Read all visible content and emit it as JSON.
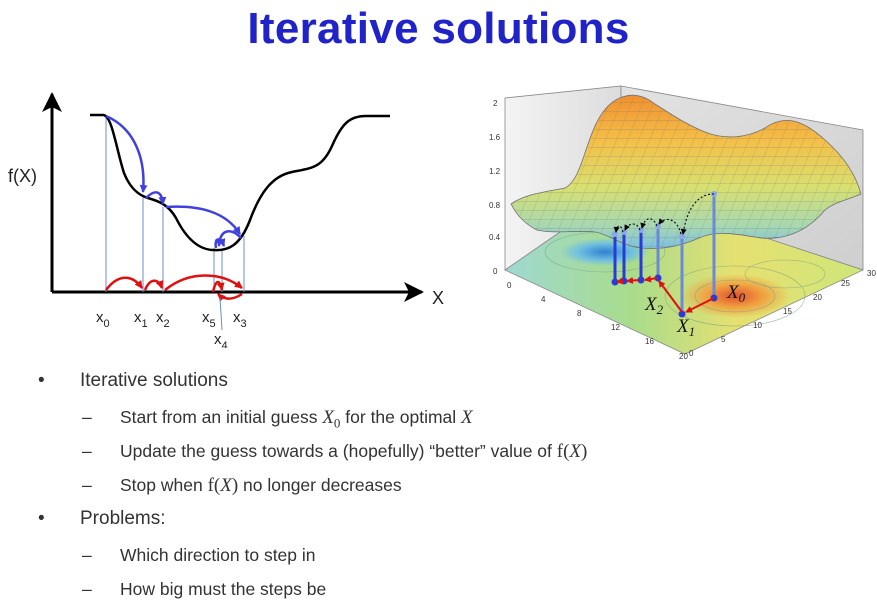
{
  "title": "Iterative solutions",
  "left_plot": {
    "y_label": "f(X)",
    "x_label": "X",
    "ticks": [
      {
        "base": "x",
        "sub": "0"
      },
      {
        "base": "x",
        "sub": "1"
      },
      {
        "base": "x",
        "sub": "2"
      },
      {
        "base": "x",
        "sub": "5"
      },
      {
        "base": "x",
        "sub": "3"
      },
      {
        "base": "x",
        "sub": "4"
      }
    ],
    "colors": {
      "curve": "#000000",
      "step": "#4040e0",
      "jump": "#e01010",
      "drop": "#6a8fc8"
    }
  },
  "surface_plot": {
    "z_ticks": [
      "2",
      "1.6",
      "1.2",
      "0.8",
      "0.4",
      "0"
    ],
    "x_ticks": [
      "0",
      "4",
      "8",
      "12",
      "16",
      "20"
    ],
    "y_ticks": [
      "0",
      "5",
      "10",
      "15",
      "20",
      "25",
      "30"
    ],
    "labels": [
      {
        "base": "X",
        "sub": "0"
      },
      {
        "base": "X",
        "sub": "1"
      },
      {
        "base": "X",
        "sub": "2"
      }
    ]
  },
  "bullets": {
    "b1": "Iterative solutions",
    "s1_pre": "Start from an initial guess ",
    "s1_X0": "X",
    "s1_sub": "0",
    "s1_mid": " for the optimal ",
    "s1_X": "X",
    "s2_pre": "Update the guess towards a (hopefully) “better” value of ",
    "s2_f": "f(",
    "s2_X": "X",
    "s2_close": ")",
    "s3_pre": "Stop when ",
    "s3_f": "f(",
    "s3_X": "X",
    "s3_close": ")",
    "s3_post": " no longer decreases",
    "b2": "Problems:",
    "p1": "Which direction to step in",
    "p2": "How big must the steps be"
  }
}
